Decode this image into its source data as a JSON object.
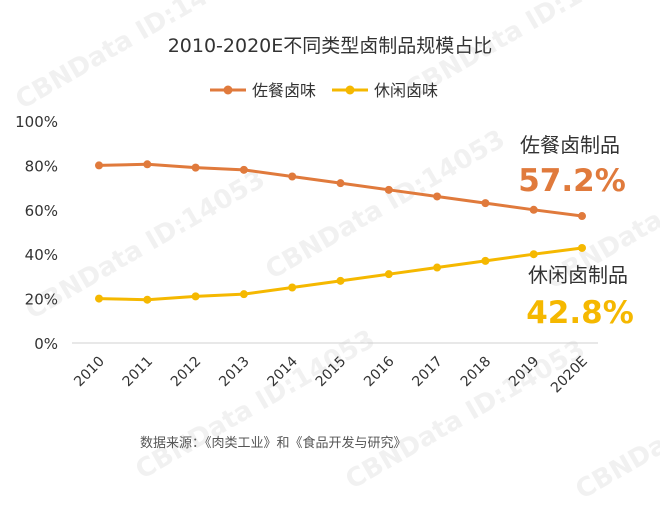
{
  "watermark": "CBNData ID:14053",
  "chart_data": {
    "type": "line",
    "title": "2010-2020E不同类型卤制品规模占比",
    "x": [
      "2010",
      "2011",
      "2012",
      "2013",
      "2014",
      "2015",
      "2016",
      "2017",
      "2018",
      "2019",
      "2020E"
    ],
    "ylim": [
      0,
      100
    ],
    "y_ticks": [
      "0%",
      "20%",
      "40%",
      "60%",
      "80%",
      "100%"
    ],
    "legend_position": "top-center",
    "grid": false,
    "series": [
      {
        "name": "佐餐卤味",
        "color": "#e07a3c",
        "values": [
          80,
          80.5,
          79,
          78,
          75,
          72,
          69,
          66,
          63,
          60,
          57.2
        ]
      },
      {
        "name": "休闲卤味",
        "color": "#f5b800",
        "values": [
          20,
          19.5,
          21,
          22,
          25,
          28,
          31,
          34,
          37,
          40,
          42.8
        ]
      }
    ],
    "annotations": [
      {
        "label": "佐餐卤制品",
        "value": "57.2%",
        "color": "#e07a3c"
      },
      {
        "label": "休闲卤制品",
        "value": "42.8%",
        "color": "#f5b800"
      }
    ],
    "source": "数据来源：《肉类工业》和《食品开发与研究》"
  }
}
